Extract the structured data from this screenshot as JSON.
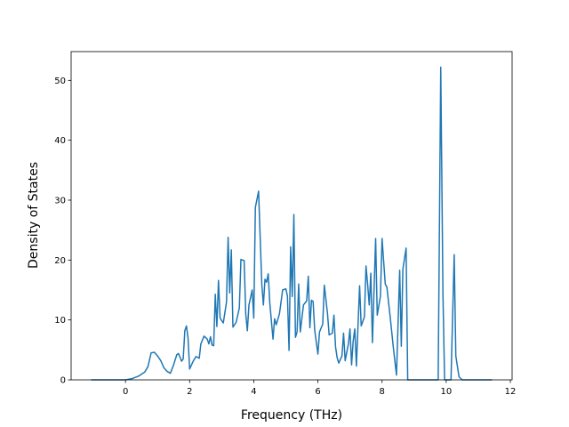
{
  "chart_data": {
    "type": "line",
    "xlabel": "Frequency (THz)",
    "ylabel": "Density of States",
    "color": "#1f77b4",
    "x": [
      -1.07,
      0,
      0.2,
      0.4,
      0.6,
      0.7,
      0.8,
      0.9,
      1.0,
      1.1,
      1.2,
      1.3,
      1.4,
      1.5,
      1.6,
      1.65,
      1.7,
      1.75,
      1.8,
      1.85,
      1.9,
      1.95,
      2.0,
      2.1,
      2.2,
      2.3,
      2.35,
      2.45,
      2.55,
      2.6,
      2.65,
      2.7,
      2.75,
      2.8,
      2.85,
      2.9,
      2.95,
      3.05,
      3.15,
      3.2,
      3.25,
      3.3,
      3.35,
      3.45,
      3.55,
      3.6,
      3.7,
      3.75,
      3.8,
      3.85,
      3.95,
      4.0,
      4.05,
      4.15,
      4.25,
      4.3,
      4.35,
      4.4,
      4.45,
      4.5,
      4.6,
      4.65,
      4.7,
      4.8,
      4.9,
      5.0,
      5.05,
      5.1,
      5.15,
      5.2,
      5.25,
      5.3,
      5.35,
      5.4,
      5.45,
      5.55,
      5.65,
      5.7,
      5.75,
      5.8,
      5.85,
      5.9,
      6.0,
      6.05,
      6.15,
      6.2,
      6.3,
      6.35,
      6.45,
      6.5,
      6.55,
      6.6,
      6.65,
      6.75,
      6.8,
      6.85,
      6.95,
      7.0,
      7.05,
      7.1,
      7.15,
      7.2,
      7.3,
      7.35,
      7.45,
      7.5,
      7.55,
      7.6,
      7.65,
      7.7,
      7.8,
      7.85,
      7.95,
      8.0,
      8.1,
      8.15,
      8.25,
      8.35,
      8.45,
      8.55,
      8.6,
      8.65,
      8.75,
      8.8,
      9.75,
      9.83,
      9.9,
      9.95,
      10.15,
      10.25,
      10.3,
      10.4,
      10.5,
      11.43
    ],
    "values": [
      0,
      0,
      0.2,
      0.6,
      1.3,
      2.2,
      4.5,
      4.6,
      4.0,
      3.2,
      2.0,
      1.4,
      1.1,
      2.5,
      4.2,
      4.4,
      3.8,
      3.1,
      3.5,
      8.2,
      9.0,
      7.0,
      1.8,
      3.0,
      3.9,
      3.6,
      6.0,
      7.3,
      6.8,
      6.0,
      7.2,
      5.8,
      5.7,
      14.3,
      8.9,
      16.6,
      10.3,
      9.5,
      13.0,
      23.8,
      14.5,
      21.7,
      8.8,
      9.6,
      12.0,
      20.1,
      19.9,
      11.0,
      8.2,
      12.5,
      15.0,
      10.3,
      28.8,
      31.5,
      16.0,
      12.5,
      16.8,
      16.3,
      17.7,
      12.8,
      6.8,
      10.2,
      9.2,
      11.0,
      15.0,
      15.2,
      14.0,
      4.9,
      22.2,
      13.9,
      27.6,
      7.1,
      8.0,
      16.0,
      8.0,
      12.5,
      13.2,
      17.3,
      8.7,
      13.3,
      13.1,
      8.3,
      4.3,
      8.0,
      9.3,
      15.8,
      11.0,
      7.5,
      7.8,
      10.8,
      5.5,
      3.7,
      2.8,
      4.0,
      7.8,
      3.2,
      6.0,
      8.5,
      2.5,
      6.5,
      8.5,
      2.3,
      15.7,
      9.0,
      10.5,
      19.0,
      16.0,
      12.5,
      17.8,
      6.2,
      23.6,
      10.8,
      14.0,
      23.6,
      16.0,
      15.5,
      10.7,
      5.5,
      0.8,
      18.3,
      5.6,
      18.5,
      22.0,
      0,
      0,
      52.2,
      14.0,
      0,
      0,
      20.9,
      4.0,
      0.5,
      0,
      0
    ],
    "xlim": [
      -1.695,
      12.055
    ],
    "ylim": [
      0,
      54.8
    ],
    "xticks": [
      0,
      2,
      4,
      6,
      8,
      10,
      12
    ],
    "yticks": [
      0,
      10,
      20,
      30,
      40,
      50
    ]
  }
}
